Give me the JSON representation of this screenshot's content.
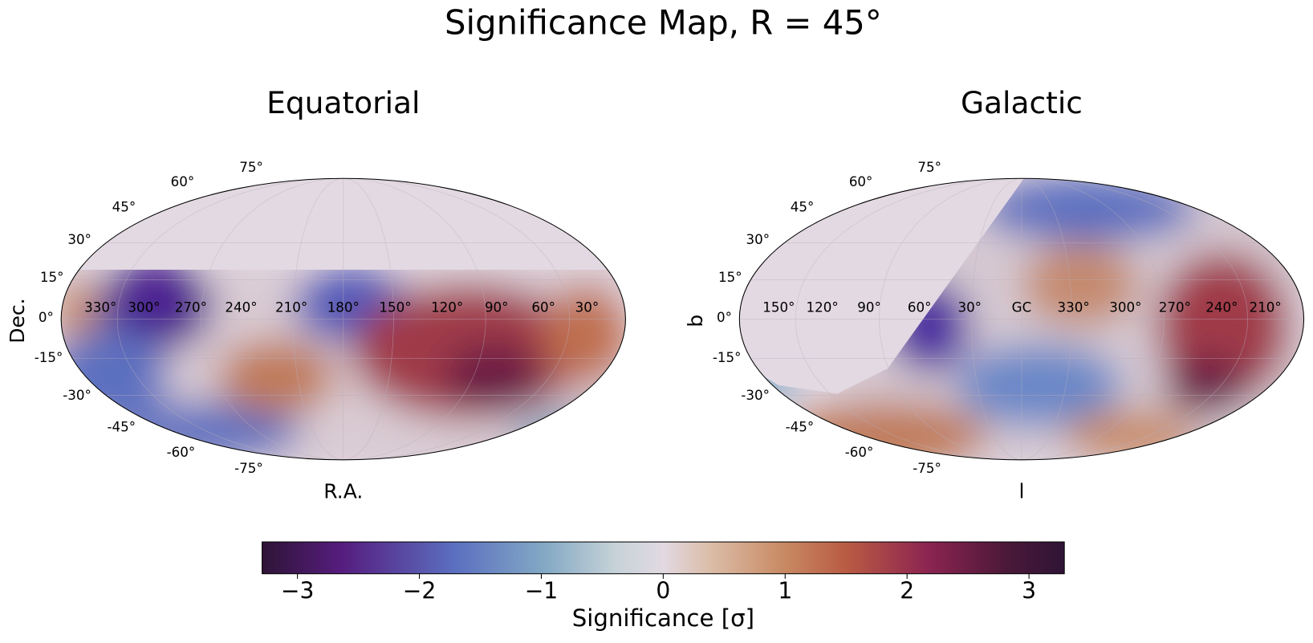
{
  "chart_data": {
    "type": "skymap",
    "title": "Significance Map, R = 45°",
    "panels": [
      {
        "title": "Equatorial",
        "xlabel": "R.A.",
        "ylabel": "Dec.",
        "lon_labels": [
          "330°",
          "300°",
          "270°",
          "240°",
          "210°",
          "180°",
          "150°",
          "120°",
          "90°",
          "60°",
          "30°"
        ],
        "lat_labels": [
          "75°",
          "60°",
          "45°",
          "30°",
          "15°",
          "0°",
          "-15°",
          "-30°",
          "-45°",
          "-60°",
          "-75°"
        ]
      },
      {
        "title": "Galactic",
        "xlabel": "l",
        "ylabel": "b",
        "lon_labels": [
          "150°",
          "120°",
          "90°",
          "60°",
          "30°",
          "GC",
          "330°",
          "300°",
          "270°",
          "240°",
          "210°"
        ],
        "lat_labels": [
          "75°",
          "60°",
          "45°",
          "30°",
          "15°",
          "0°",
          "-15°",
          "-30°",
          "-45°",
          "-60°",
          "-75°"
        ]
      }
    ],
    "colorbar": {
      "label": "Significance [σ]",
      "lim": [
        -3.29,
        3.29
      ],
      "ticks": [
        {
          "value": -3,
          "label": "−3"
        },
        {
          "value": -2,
          "label": "−2"
        },
        {
          "value": -1,
          "label": "−1"
        },
        0,
        1,
        2,
        3
      ]
    }
  }
}
